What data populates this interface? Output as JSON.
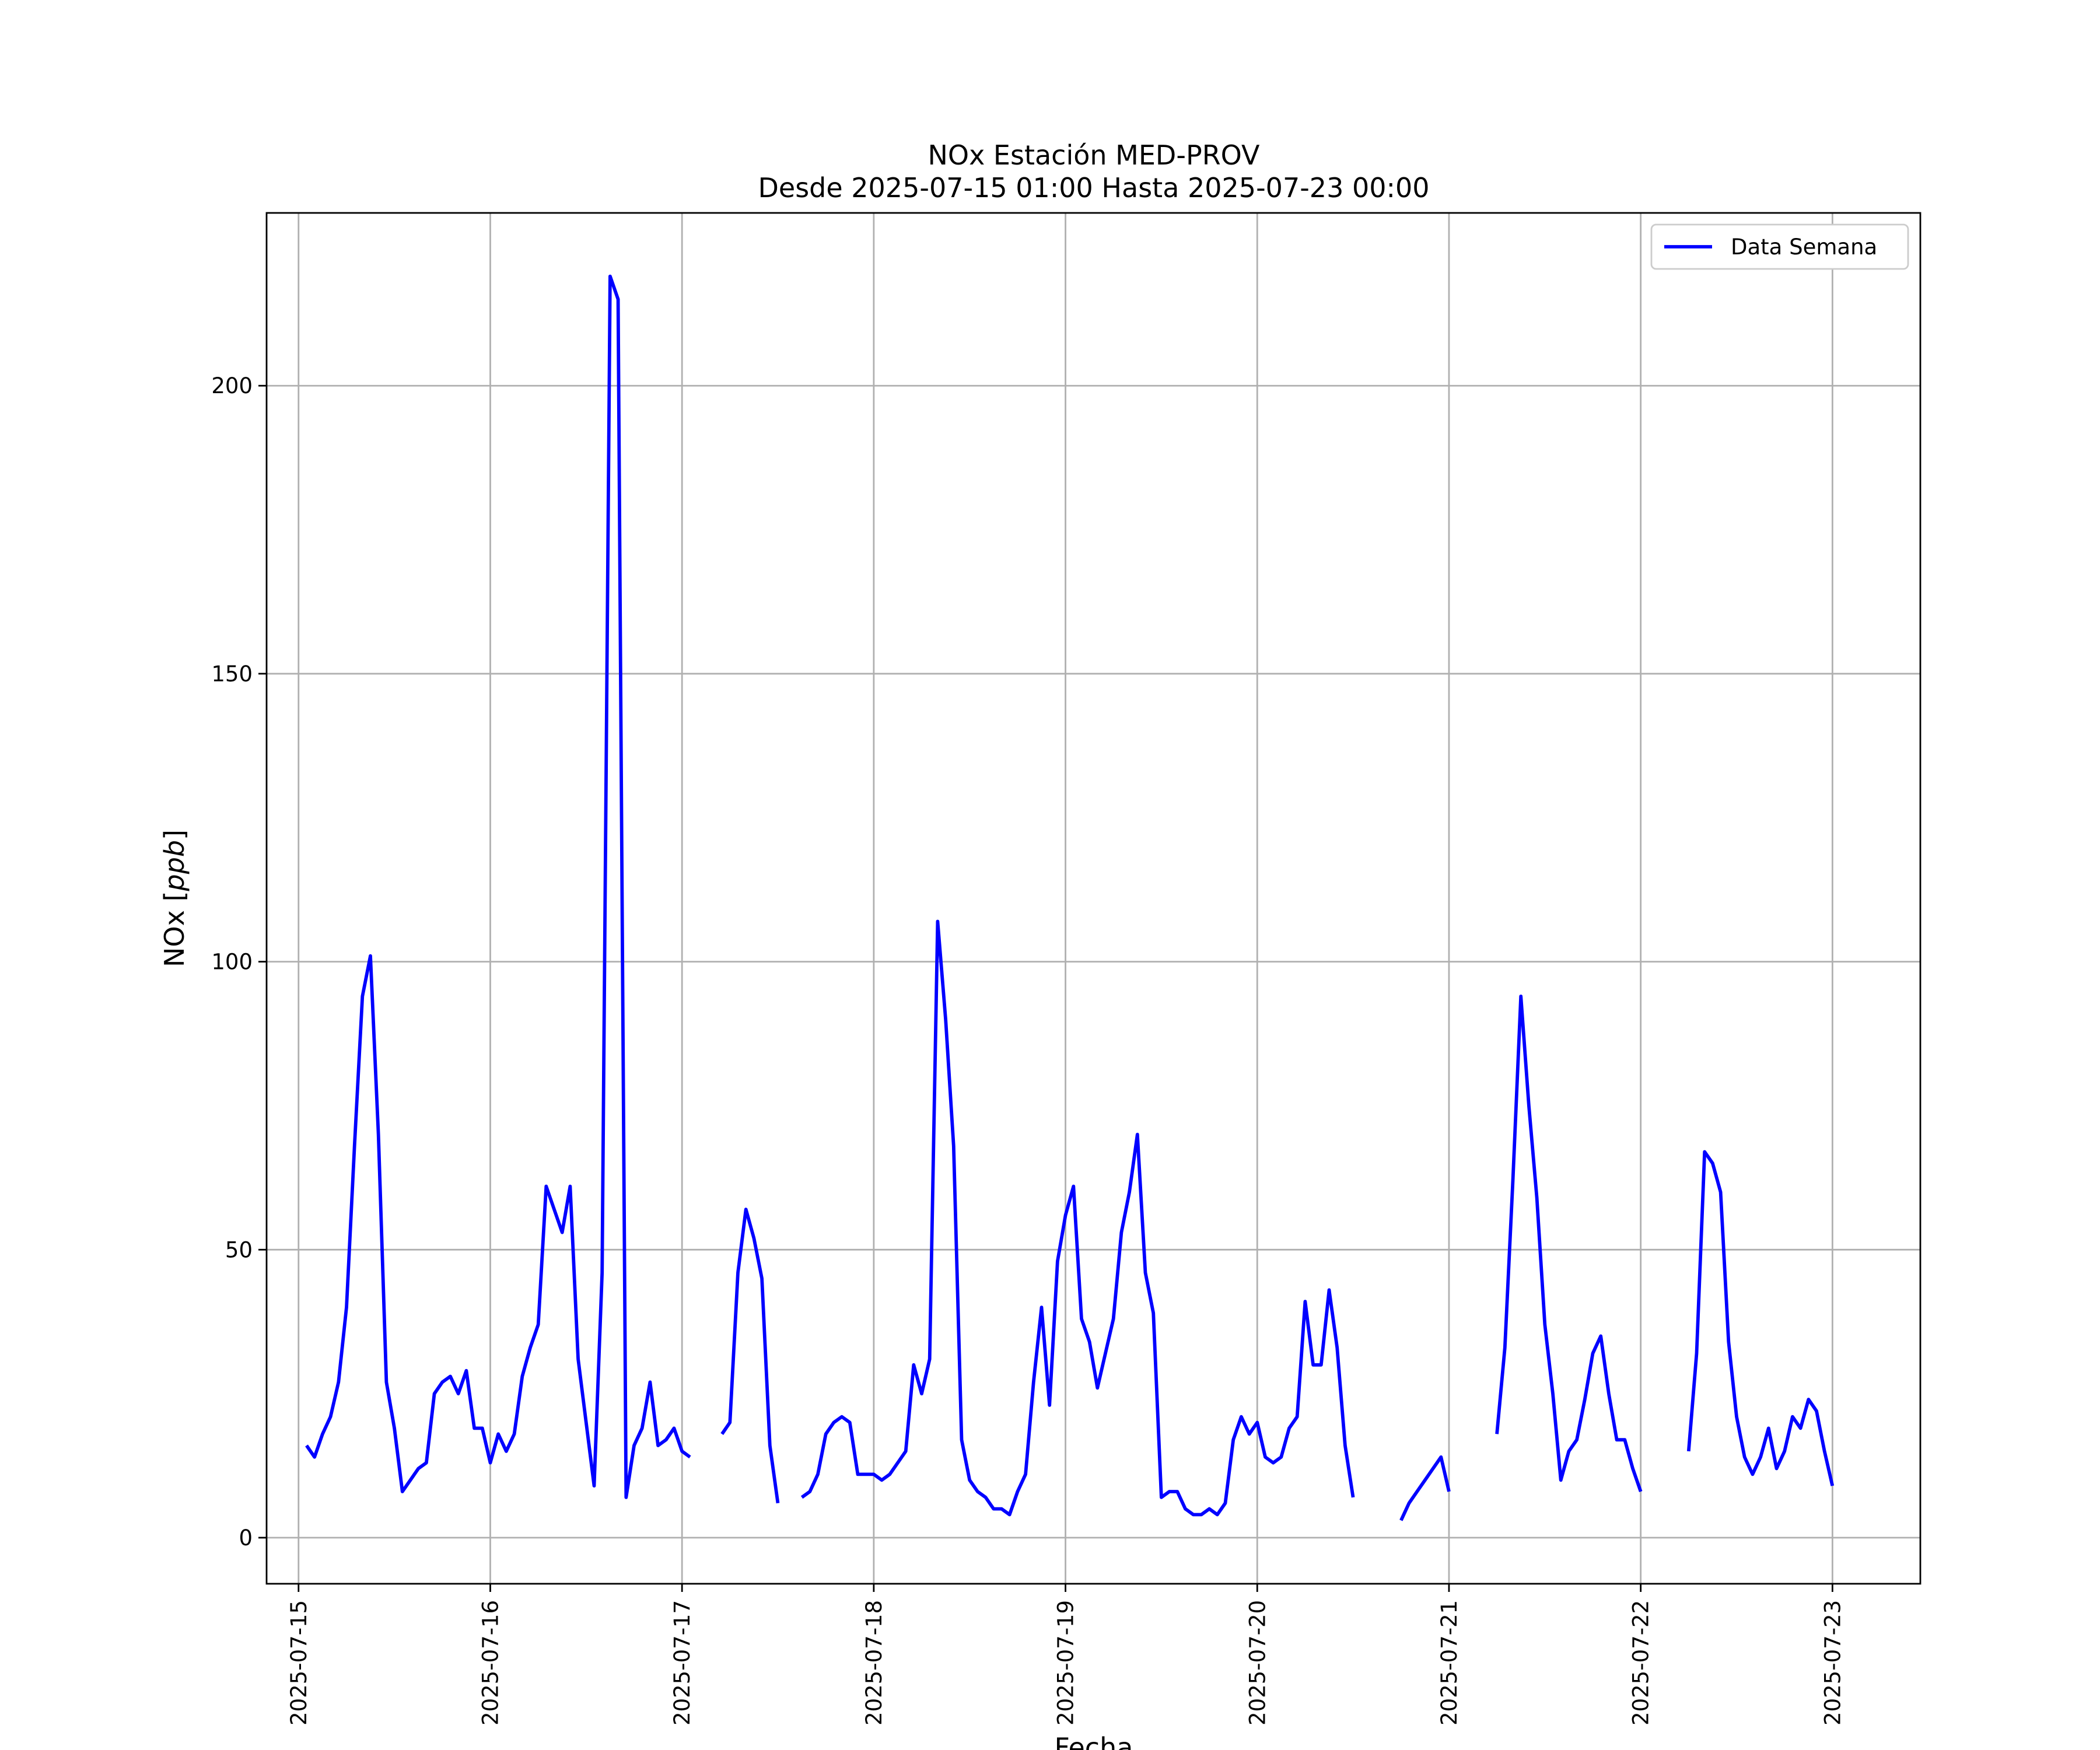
{
  "chart_data": {
    "type": "line",
    "title": "NOx Estación MED-PROV",
    "subtitle": "Desde 2025-07-15 01:00 Hasta 2025-07-23 00:00",
    "xlabel": "Fecha",
    "ylabel": "NOx [ppb]",
    "xlim": [
      "2025-07-14 20:00",
      "2025-07-23 11:00"
    ],
    "ylim": [
      -8,
      230
    ],
    "x_ticks": [
      "2025-07-15",
      "2025-07-16",
      "2025-07-17",
      "2025-07-18",
      "2025-07-19",
      "2025-07-20",
      "2025-07-21",
      "2025-07-22",
      "2025-07-23"
    ],
    "y_ticks": [
      0,
      50,
      100,
      150,
      200
    ],
    "grid": true,
    "legend_position": "top-right",
    "colors": {
      "series": "#0000ff"
    },
    "series": [
      {
        "name": "Data Semana",
        "x": [
          "2025-07-15 01:00",
          "2025-07-15 02:00",
          "2025-07-15 03:00",
          "2025-07-15 04:00",
          "2025-07-15 05:00",
          "2025-07-15 06:00",
          "2025-07-15 07:00",
          "2025-07-15 08:00",
          "2025-07-15 09:00",
          "2025-07-15 10:00",
          "2025-07-15 11:00",
          "2025-07-15 12:00",
          "2025-07-15 13:00",
          "2025-07-15 14:00",
          "2025-07-15 15:00",
          "2025-07-15 16:00",
          "2025-07-15 17:00",
          "2025-07-15 18:00",
          "2025-07-15 19:00",
          "2025-07-15 20:00",
          "2025-07-15 21:00",
          "2025-07-15 22:00",
          "2025-07-15 23:00",
          "2025-07-16 00:00",
          "2025-07-16 01:00",
          "2025-07-16 02:00",
          "2025-07-16 03:00",
          "2025-07-16 04:00",
          "2025-07-16 05:00",
          "2025-07-16 06:00",
          "2025-07-16 07:00",
          "2025-07-16 08:00",
          "2025-07-16 09:00",
          "2025-07-16 10:00",
          "2025-07-16 11:00",
          "2025-07-16 12:00",
          "2025-07-16 13:00",
          "2025-07-16 14:00",
          "2025-07-16 15:00",
          "2025-07-16 16:00",
          "2025-07-16 17:00",
          "2025-07-16 18:00",
          "2025-07-16 19:00",
          "2025-07-16 20:00",
          "2025-07-16 21:00",
          "2025-07-16 22:00",
          "2025-07-16 23:00",
          "2025-07-17 00:00",
          "2025-07-17 01:00",
          "2025-07-17 02:00",
          "2025-07-17 03:00",
          "2025-07-17 04:00",
          "2025-07-17 05:00",
          "2025-07-17 06:00",
          "2025-07-17 07:00",
          "2025-07-17 08:00",
          "2025-07-17 09:00",
          "2025-07-17 10:00",
          "2025-07-17 11:00",
          "2025-07-17 12:00",
          "2025-07-17 13:00",
          "2025-07-17 14:00",
          "2025-07-17 15:00",
          "2025-07-17 16:00",
          "2025-07-17 17:00",
          "2025-07-17 18:00",
          "2025-07-17 19:00",
          "2025-07-17 20:00",
          "2025-07-17 21:00",
          "2025-07-17 22:00",
          "2025-07-17 23:00",
          "2025-07-18 00:00",
          "2025-07-18 01:00",
          "2025-07-18 02:00",
          "2025-07-18 03:00",
          "2025-07-18 04:00",
          "2025-07-18 05:00",
          "2025-07-18 06:00",
          "2025-07-18 07:00",
          "2025-07-18 08:00",
          "2025-07-18 09:00",
          "2025-07-18 10:00",
          "2025-07-18 11:00",
          "2025-07-18 12:00",
          "2025-07-18 13:00",
          "2025-07-18 14:00",
          "2025-07-18 15:00",
          "2025-07-18 16:00",
          "2025-07-18 17:00",
          "2025-07-18 18:00",
          "2025-07-18 19:00",
          "2025-07-18 20:00",
          "2025-07-18 21:00",
          "2025-07-18 22:00",
          "2025-07-18 23:00",
          "2025-07-19 00:00",
          "2025-07-19 01:00",
          "2025-07-19 02:00",
          "2025-07-19 03:00",
          "2025-07-19 04:00",
          "2025-07-19 05:00",
          "2025-07-19 06:00",
          "2025-07-19 07:00",
          "2025-07-19 08:00",
          "2025-07-19 09:00",
          "2025-07-19 10:00",
          "2025-07-19 11:00",
          "2025-07-19 12:00",
          "2025-07-19 13:00",
          "2025-07-19 14:00",
          "2025-07-19 15:00",
          "2025-07-19 16:00",
          "2025-07-19 17:00",
          "2025-07-19 18:00",
          "2025-07-19 19:00",
          "2025-07-19 20:00",
          "2025-07-19 21:00",
          "2025-07-19 22:00",
          "2025-07-19 23:00",
          "2025-07-20 00:00",
          "2025-07-20 01:00",
          "2025-07-20 02:00",
          "2025-07-20 03:00",
          "2025-07-20 04:00",
          "2025-07-20 05:00",
          "2025-07-20 06:00",
          "2025-07-20 07:00",
          "2025-07-20 08:00",
          "2025-07-20 09:00",
          "2025-07-20 10:00",
          "2025-07-20 11:00",
          "2025-07-20 12:00",
          "2025-07-20 13:00",
          "2025-07-20 14:00",
          "2025-07-20 15:00",
          "2025-07-20 16:00",
          "2025-07-20 17:00",
          "2025-07-20 18:00",
          "2025-07-20 19:00",
          "2025-07-20 20:00",
          "2025-07-20 21:00",
          "2025-07-20 22:00",
          "2025-07-20 23:00",
          "2025-07-21 00:00",
          "2025-07-21 01:00",
          "2025-07-21 02:00",
          "2025-07-21 03:00",
          "2025-07-21 04:00",
          "2025-07-21 05:00",
          "2025-07-21 06:00",
          "2025-07-21 07:00",
          "2025-07-21 08:00",
          "2025-07-21 09:00",
          "2025-07-21 10:00",
          "2025-07-21 11:00",
          "2025-07-21 12:00",
          "2025-07-21 13:00",
          "2025-07-21 14:00",
          "2025-07-21 15:00",
          "2025-07-21 16:00",
          "2025-07-21 17:00",
          "2025-07-21 18:00",
          "2025-07-21 19:00",
          "2025-07-21 20:00",
          "2025-07-21 21:00",
          "2025-07-21 22:00",
          "2025-07-21 23:00",
          "2025-07-22 00:00",
          "2025-07-22 01:00",
          "2025-07-22 02:00",
          "2025-07-22 03:00",
          "2025-07-22 04:00",
          "2025-07-22 05:00",
          "2025-07-22 06:00",
          "2025-07-22 07:00",
          "2025-07-22 08:00",
          "2025-07-22 09:00",
          "2025-07-22 10:00",
          "2025-07-22 11:00",
          "2025-07-22 12:00",
          "2025-07-22 13:00",
          "2025-07-22 14:00",
          "2025-07-22 15:00",
          "2025-07-22 16:00",
          "2025-07-22 17:00",
          "2025-07-22 18:00",
          "2025-07-22 19:00",
          "2025-07-22 20:00",
          "2025-07-22 21:00",
          "2025-07-22 22:00",
          "2025-07-22 23:00",
          "2025-07-23 00:00"
        ],
        "y": [
          16,
          14,
          18,
          21,
          27,
          40,
          68,
          94,
          101,
          70,
          27,
          19,
          8,
          10,
          12,
          13,
          25,
          27,
          28,
          25,
          29,
          19,
          19,
          13,
          18,
          15,
          18,
          28,
          33,
          37,
          61,
          57,
          53,
          61,
          31,
          20,
          9,
          46,
          219,
          215,
          7,
          16,
          19,
          27,
          16,
          17,
          19,
          15,
          14,
          null,
          null,
          null,
          18,
          20,
          46,
          57,
          52,
          45,
          16,
          6,
          null,
          null,
          7,
          8,
          11,
          18,
          20,
          21,
          20,
          11,
          11,
          11,
          10,
          11,
          13,
          15,
          30,
          25,
          31,
          107,
          90,
          68,
          17,
          10,
          8,
          7,
          5,
          5,
          4,
          8,
          11,
          27,
          40,
          23,
          48,
          56,
          61,
          38,
          34,
          26,
          32,
          38,
          53,
          60,
          70,
          46,
          39,
          7,
          8,
          8,
          5,
          4,
          4,
          5,
          4,
          6,
          17,
          21,
          18,
          20,
          14,
          13,
          14,
          19,
          21,
          41,
          30,
          30,
          43,
          33,
          16,
          7,
          null,
          null,
          null,
          null,
          null,
          3,
          6,
          8,
          10,
          12,
          14,
          8,
          null,
          null,
          null,
          null,
          null,
          18,
          33,
          62,
          94,
          75,
          59,
          37,
          25,
          10,
          15,
          17,
          24,
          32,
          35,
          25,
          17,
          17,
          12,
          8,
          null,
          null,
          null,
          null,
          null,
          15,
          32,
          67,
          65,
          60,
          34,
          21,
          14,
          11,
          14,
          19,
          12,
          15,
          21,
          19,
          24,
          22,
          15,
          9
        ]
      }
    ]
  }
}
